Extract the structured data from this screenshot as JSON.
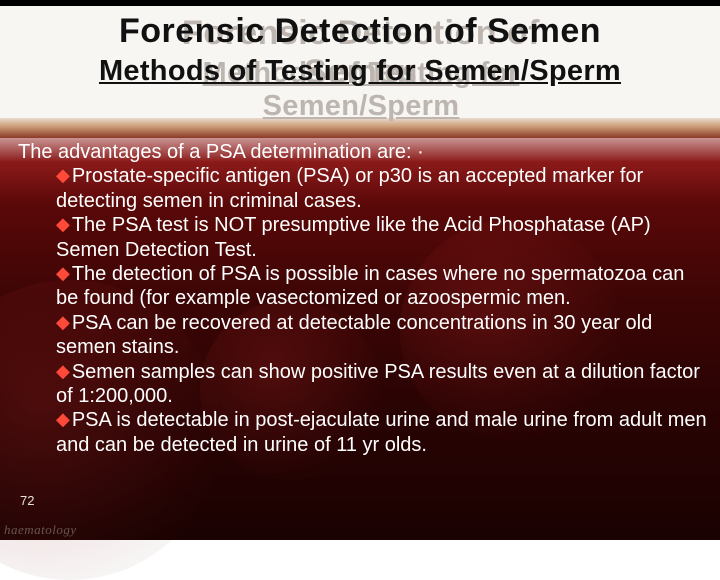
{
  "header": {
    "title": "Forensic Detection of Semen",
    "subtitle": "Methods of Testing for Semen/Sperm",
    "title_color": "#111111",
    "title_shadow_color": "#bdb6b0",
    "title_fontsize": 34,
    "subtitle_fontsize": 29,
    "underline_subtitle": true,
    "background_color": "#f8f6f3"
  },
  "body": {
    "intro": "The advantages of a PSA determination are: ·",
    "bullets": [
      "Prostate-specific antigen (PSA) or p30 is an accepted marker for detecting semen in criminal cases.",
      "The PSA test is NOT presumptive like the Acid Phosphatase (AP) Semen Detection Test.",
      "The detection of PSA is possible in cases where no spermatozoa can be found (for example vasectomized or azoospermic men.",
      "PSA can be recovered at detectable concentrations in 30 year old semen stains.",
      "Semen samples can show positive PSA results even at a dilution factor of 1:200,000.",
      "PSA is detectable in post-ejaculate urine and male urine from adult men and can be detected in urine of 11 yr olds."
    ],
    "text_color": "#ffffff",
    "fontsize": 20,
    "bullet_marker": "◆",
    "bullet_marker_color": "#ff4a3a"
  },
  "footer": {
    "page_number": "72",
    "logo_text": "haematology",
    "logo_color": "#9c968f"
  },
  "background": {
    "gradient_top": "#ffffff",
    "gradient_upper_mid": "#8b1a1a",
    "gradient_mid": "#5a0808",
    "gradient_bottom": "#1a0202",
    "top_bar_color": "#000000",
    "band_gradient": [
      "#e9dbce",
      "#cda07a",
      "#8b3a25"
    ]
  }
}
